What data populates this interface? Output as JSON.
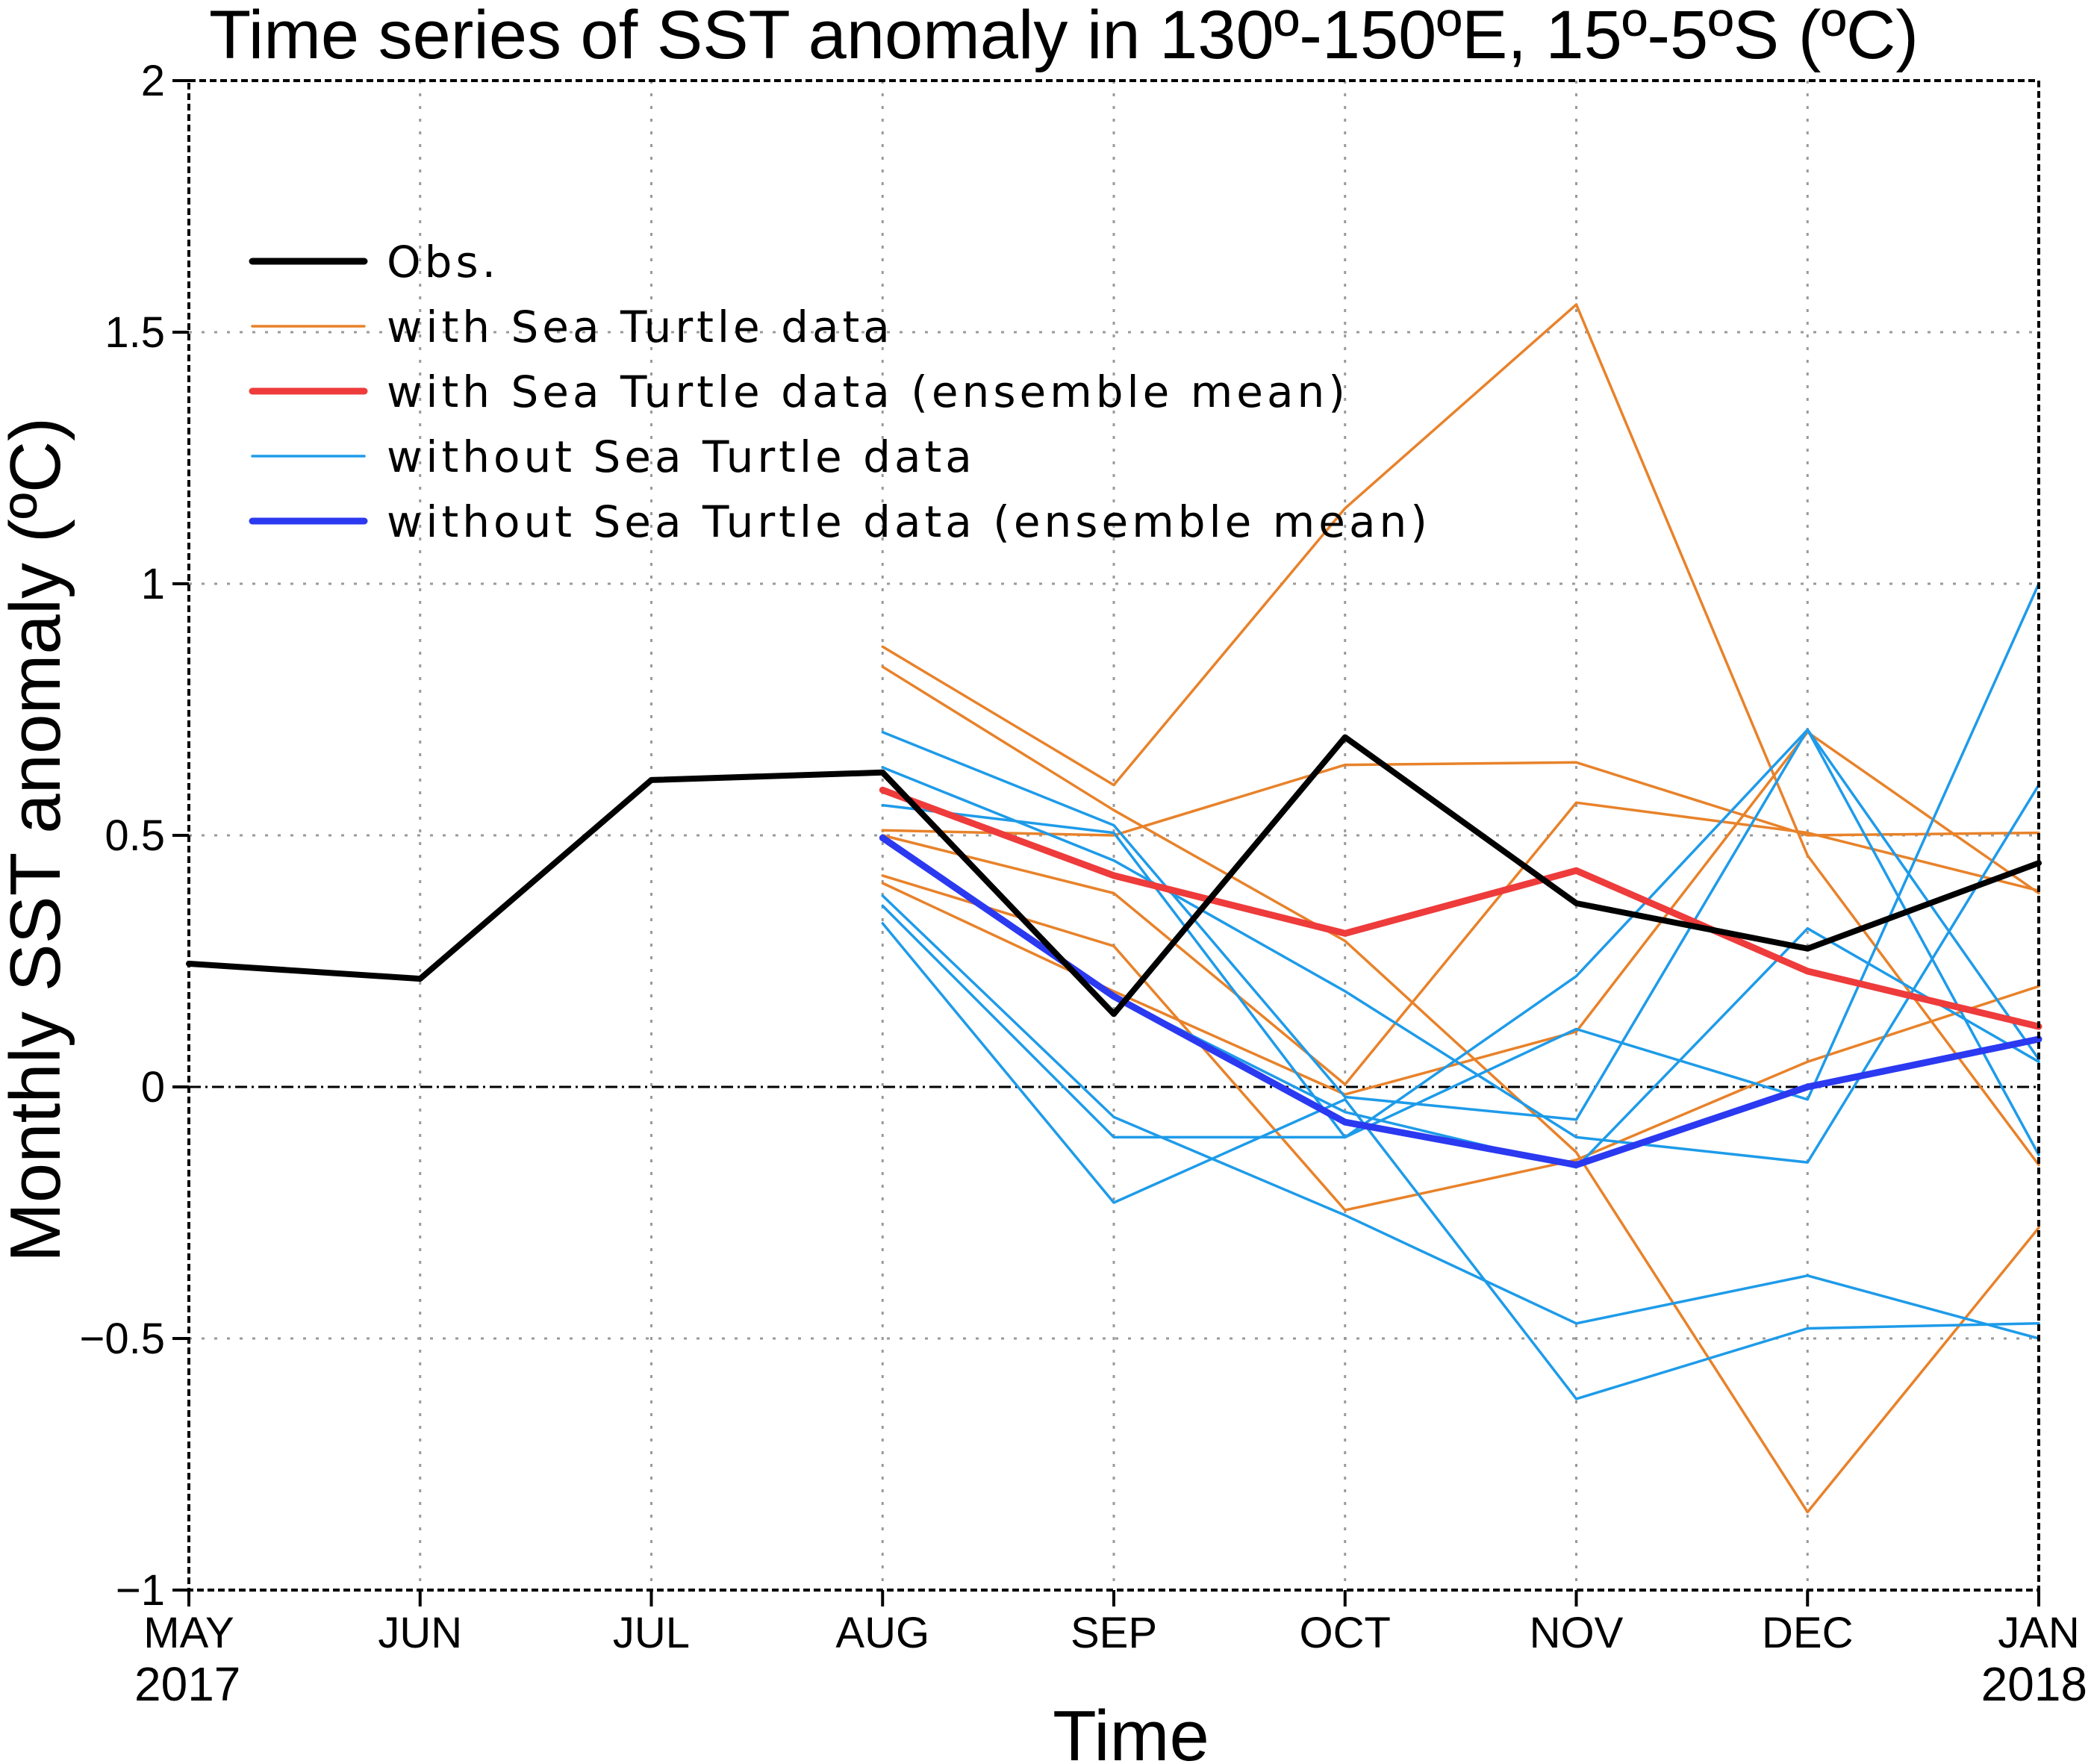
{
  "chart_data": {
    "type": "line",
    "title": "Time series of SST anomaly in 130º-150ºE, 15º-5ºS (ºC)",
    "xlabel": "Time",
    "ylabel": "Monthly SST anomaly (ºC)",
    "categories": [
      "MAY",
      "JUN",
      "JUL",
      "AUG",
      "SEP",
      "OCT",
      "NOV",
      "DEC",
      "JAN"
    ],
    "x_year_labels": [
      {
        "index": 0,
        "label": "2017"
      },
      {
        "index": 8,
        "label": "2018"
      }
    ],
    "ylim": [
      -1,
      2
    ],
    "yticks": [
      -1,
      -0.5,
      0,
      0.5,
      1,
      1.5,
      2
    ],
    "ytick_labels": [
      "−1",
      "−0.5",
      "0",
      "0.5",
      "1",
      "1.5",
      "2"
    ],
    "grid": true,
    "zero_line": true,
    "legend": {
      "placement": "top-left",
      "entries": [
        {
          "label": "Obs.",
          "color": "#000000",
          "style": "thick"
        },
        {
          "label": "with Sea Turtle data",
          "color": "#E8822A",
          "style": "thin"
        },
        {
          "label": "with Sea Turtle data (ensemble mean)",
          "color": "#EE3B3B",
          "style": "thick"
        },
        {
          "label": "without Sea Turtle data",
          "color": "#1E9BE9",
          "style": "thin"
        },
        {
          "label": "without Sea Turtle data (ensemble mean)",
          "color": "#2B39F0",
          "style": "thick"
        }
      ]
    },
    "obs": {
      "name": "Obs.",
      "color": "#000000",
      "start_index": 0,
      "values": [
        0.245,
        0.215,
        0.61,
        0.625,
        0.145,
        0.695,
        0.365,
        0.275,
        0.445
      ]
    },
    "with_members": {
      "name": "with Sea Turtle data",
      "color": "#E8822A",
      "start_index": 3,
      "series": [
        [
          0.875,
          0.6,
          1.15,
          1.555,
          0.46,
          -0.155
        ],
        [
          0.835,
          0.55,
          0.29,
          -0.13,
          -0.845,
          -0.28
        ],
        [
          0.51,
          0.5,
          0.64,
          0.645,
          0.5,
          0.505
        ],
        [
          0.5,
          0.385,
          0.005,
          0.565,
          0.505,
          0.39
        ],
        [
          0.42,
          0.28,
          -0.245,
          -0.145,
          0.05,
          0.2
        ],
        [
          0.405,
          0.19,
          -0.015,
          0.11,
          0.705,
          0.385
        ]
      ]
    },
    "with_mean": {
      "name": "with Sea Turtle data (ensemble mean)",
      "color": "#EE3B3B",
      "start_index": 3,
      "values": [
        0.59,
        0.42,
        0.305,
        0.43,
        0.23,
        0.12
      ]
    },
    "without_members": {
      "name": "without Sea Turtle data",
      "color": "#1E9BE9",
      "start_index": 3,
      "series": [
        [
          0.705,
          0.52,
          -0.02,
          -0.065,
          0.71,
          0.055
        ],
        [
          0.635,
          0.45,
          0.19,
          -0.1,
          -0.15,
          0.6
        ],
        [
          0.56,
          0.505,
          -0.1,
          0.22,
          0.71,
          -0.135
        ],
        [
          0.38,
          -0.06,
          -0.255,
          -0.47,
          -0.375,
          -0.5
        ],
        [
          0.36,
          -0.1,
          -0.1,
          0.115,
          -0.025,
          1.0
        ],
        [
          0.325,
          -0.23,
          -0.025,
          -0.62,
          -0.48,
          -0.47
        ],
        [
          0.5,
          0.18,
          -0.05,
          -0.16,
          0.315,
          0.05
        ]
      ]
    },
    "without_mean": {
      "name": "without Sea Turtle data (ensemble mean)",
      "color": "#2B39F0",
      "start_index": 3,
      "values": [
        0.495,
        0.18,
        -0.07,
        -0.155,
        0.0,
        0.095
      ]
    }
  }
}
